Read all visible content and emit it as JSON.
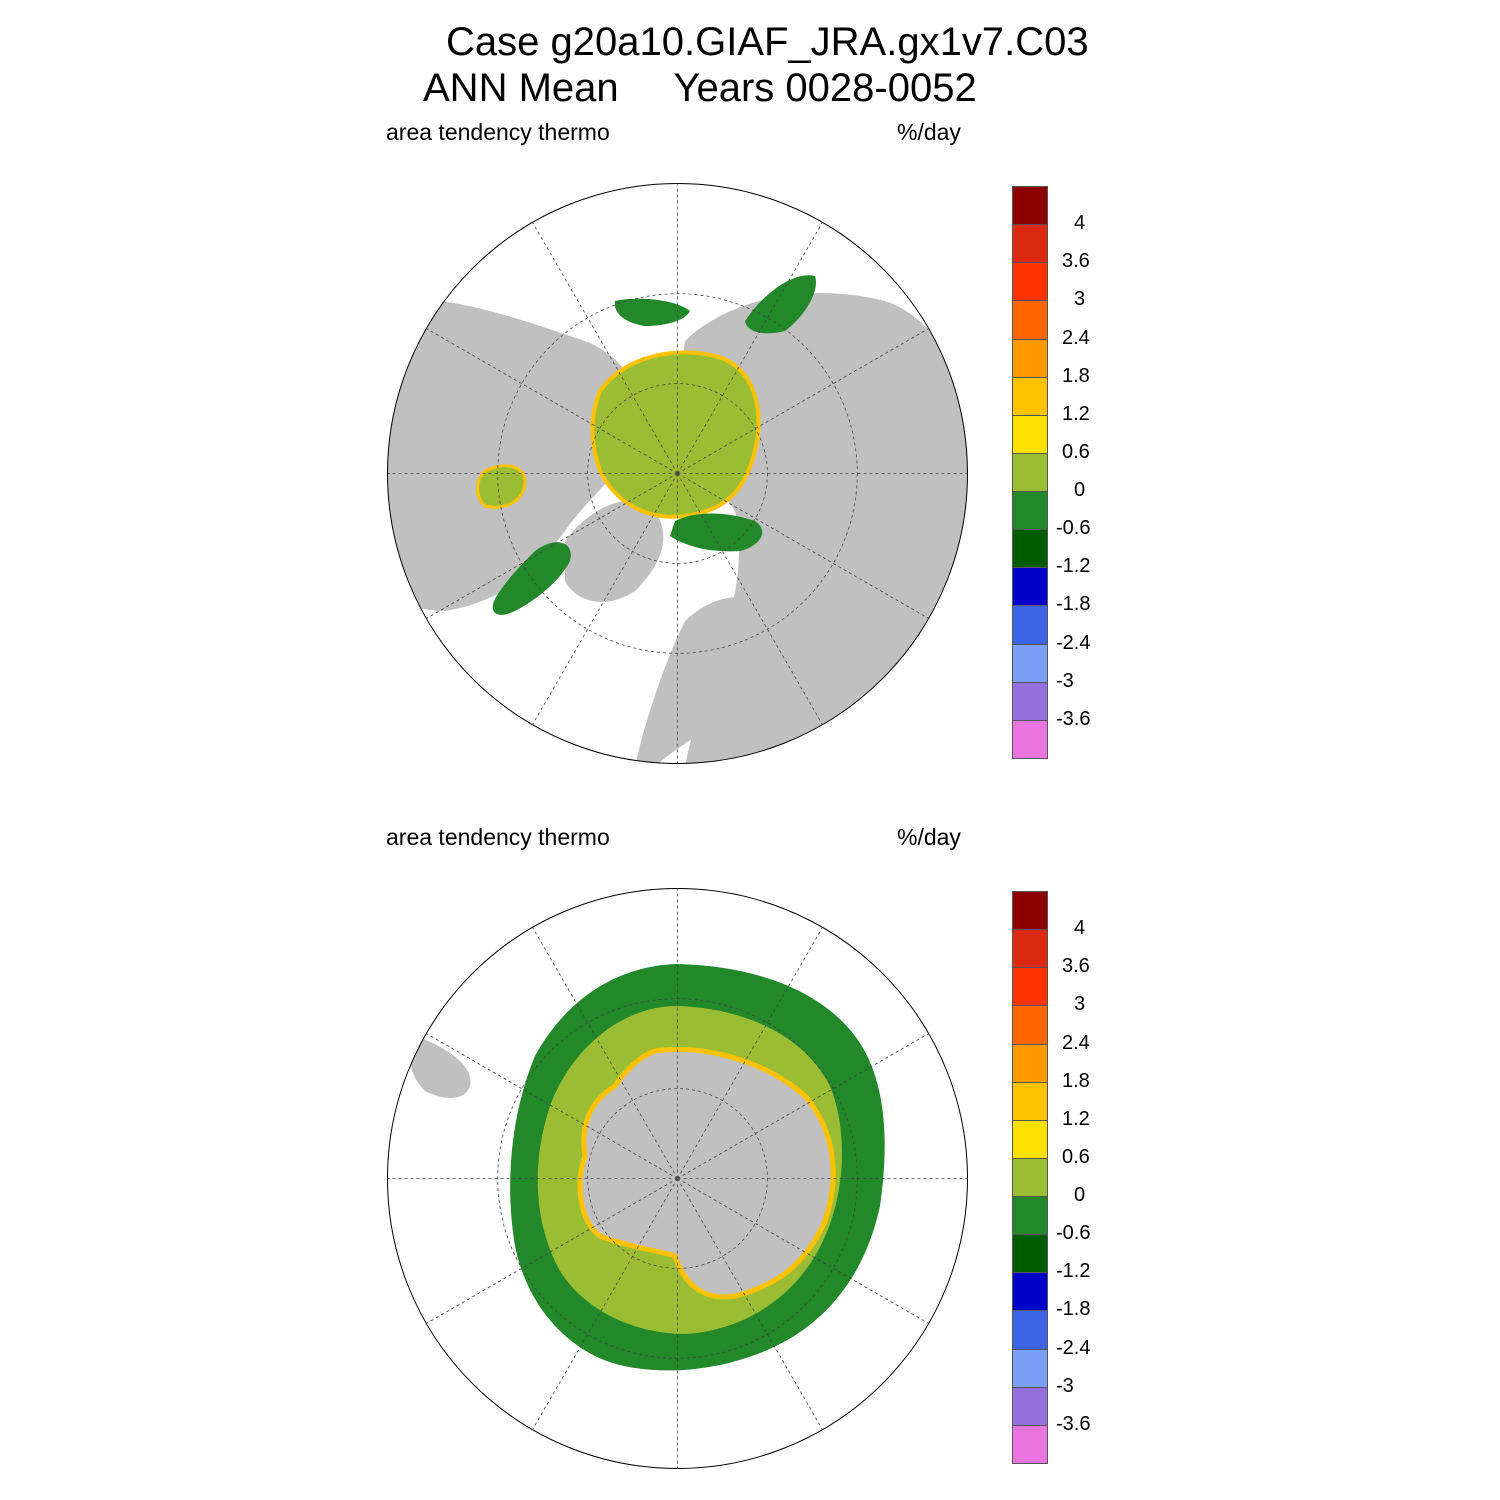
{
  "title": {
    "line1": "Case g20a10.GIAF_JRA.gx1v7.C03",
    "line2": "ANN Mean     Years 0028-0052"
  },
  "panels": [
    {
      "left_label": "area tendency thermo",
      "right_label": "%/day",
      "hemisphere": "north"
    },
    {
      "left_label": "area tendency thermo",
      "right_label": "%/day",
      "hemisphere": "south"
    }
  ],
  "colorbar": {
    "colors": [
      "#8b0000",
      "#dc2912",
      "#ff3300",
      "#ff6600",
      "#ff9900",
      "#ffc200",
      "#ffe100",
      "#9bbd34",
      "#22882a",
      "#005c00",
      "#0000c8",
      "#3d64e6",
      "#7b9ff4",
      "#9370db",
      "#e875de"
    ],
    "labels": [
      "4",
      "3.6",
      "3",
      "2.4",
      "1.8",
      "1.2",
      "0.6",
      "0",
      "-0.6",
      "-1.2",
      "-1.8",
      "-2.4",
      "-3",
      "-3.6"
    ]
  },
  "map_colors": {
    "land": "#c0c0c0",
    "ocean": "#ffffff",
    "grid": "#444444"
  }
}
